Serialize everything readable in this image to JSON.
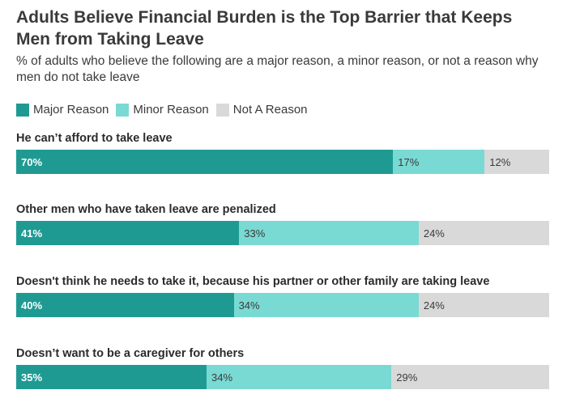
{
  "title": "Adults Believe Financial Burden is the Top Barrier that Keeps Men from Taking Leave",
  "subtitle": "% of adults who believe the following are a major reason, a minor reason, or not a reason why men do not take leave",
  "legend": [
    {
      "label": "Major Reason",
      "color": "#1f9a93"
    },
    {
      "label": "Minor Reason",
      "color": "#79d9d3"
    },
    {
      "label": "Not A Reason",
      "color": "#d9d9d9"
    }
  ],
  "chart_data": {
    "type": "bar",
    "orientation": "horizontal",
    "stacked": true,
    "title": "Adults Believe Financial Burden is the Top Barrier that Keeps Men from Taking Leave",
    "subtitle": "% of adults who believe the following are a major reason, a minor reason, or not a reason why men do not take leave",
    "categories": [
      "He can’t afford to take leave",
      "Other men who have taken leave are penalized",
      "Doesn't think he needs to take it, because his partner or other family are taking leave",
      "Doesn’t want to be a caregiver for others"
    ],
    "series": [
      {
        "name": "Major Reason",
        "values": [
          70,
          41,
          40,
          35
        ],
        "labels": [
          "70%",
          "41%",
          "40%",
          "35%"
        ]
      },
      {
        "name": "Minor Reason",
        "values": [
          17,
          33,
          34,
          34
        ],
        "labels": [
          "17%",
          "33%",
          "34%",
          "34%"
        ]
      },
      {
        "name": "Not A Reason",
        "values": [
          12,
          24,
          24,
          29
        ],
        "labels": [
          "12%",
          "24%",
          "24%",
          "29%"
        ]
      }
    ],
    "legend_position": "top-left",
    "grid": false
  }
}
